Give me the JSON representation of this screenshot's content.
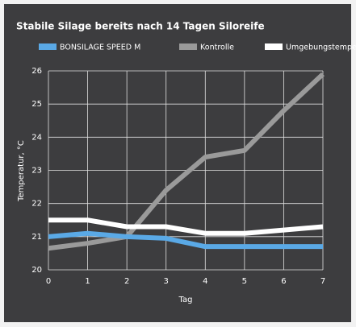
{
  "chart_data": {
    "type": "line",
    "title": "Stabile Silage bereits nach 14 Tagen Siloreife",
    "x_label": "Tag",
    "y_label": "Temperatur, °C",
    "x": [
      0,
      1,
      2,
      3,
      4,
      5,
      6,
      7
    ],
    "series": [
      {
        "name": "BONSILAGE SPEED M",
        "color": "#5aa9e6",
        "values": [
          21.0,
          21.1,
          21.0,
          20.95,
          20.7,
          20.7,
          20.7,
          20.7
        ]
      },
      {
        "name": "Kontrolle",
        "color": "#9a9a9a",
        "values": [
          20.65,
          20.8,
          21.0,
          22.4,
          23.4,
          23.6,
          24.8,
          25.9
        ]
      },
      {
        "name": "Umgebungstemperatur",
        "color": "#ffffff",
        "values": [
          21.5,
          21.5,
          21.3,
          21.3,
          21.1,
          21.1,
          21.2,
          21.3
        ]
      }
    ],
    "xlim": [
      0,
      7
    ],
    "xticks": [
      0,
      1,
      2,
      3,
      4,
      5,
      6,
      7
    ],
    "ylim": [
      20,
      26
    ],
    "yticks": [
      20,
      21,
      22,
      23,
      24,
      25,
      26
    ],
    "grid": true
  }
}
